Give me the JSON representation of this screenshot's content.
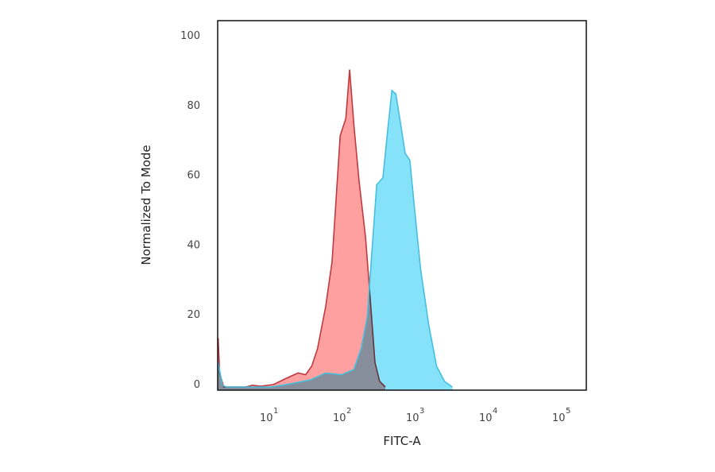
{
  "chart_data": {
    "type": "area",
    "title": "",
    "xlabel": "FITC-A",
    "ylabel": "Normalized To Mode",
    "x_scale": "log",
    "xlim": [
      2.1,
      230000
    ],
    "ylim": [
      0,
      100
    ],
    "grid": false,
    "legend": "none",
    "y_ticks": [
      "0",
      "20",
      "40",
      "60",
      "80",
      "100"
    ],
    "x_ticks": [
      {
        "base": "10",
        "exp": "1",
        "value": 10
      },
      {
        "base": "10",
        "exp": "2",
        "value": 100
      },
      {
        "base": "10",
        "exp": "3",
        "value": 1000
      },
      {
        "base": "10",
        "exp": "4",
        "value": 10000
      },
      {
        "base": "10",
        "exp": "5",
        "value": 100000
      }
    ],
    "series": [
      {
        "fill": "#ff9b9b",
        "stroke": "#c0393f",
        "points": [
          [
            2.1,
            14
          ],
          [
            2.2,
            4
          ],
          [
            2.5,
            0
          ],
          [
            5,
            0
          ],
          [
            6.2,
            0.5
          ],
          [
            8,
            0.2
          ],
          [
            12,
            0.7
          ],
          [
            18,
            2.5
          ],
          [
            26,
            4
          ],
          [
            33,
            3.5
          ],
          [
            40,
            6
          ],
          [
            48,
            11
          ],
          [
            62,
            23
          ],
          [
            76,
            36
          ],
          [
            98,
            72
          ],
          [
            117,
            77
          ],
          [
            132,
            91
          ],
          [
            151,
            75
          ],
          [
            178,
            59
          ],
          [
            218,
            43
          ],
          [
            253,
            25
          ],
          [
            293,
            7
          ],
          [
            340,
            1.6
          ],
          [
            406,
            0
          ]
        ]
      },
      {
        "fill": "#7fe0f8",
        "stroke": "#45bfdd",
        "points": [
          [
            2.1,
            7
          ],
          [
            2.4,
            0.5
          ],
          [
            2.7,
            0
          ],
          [
            11,
            0
          ],
          [
            18,
            0.7
          ],
          [
            38,
            2
          ],
          [
            62,
            4
          ],
          [
            102,
            3.5
          ],
          [
            150,
            5
          ],
          [
            190,
            11
          ],
          [
            230,
            20
          ],
          [
            265,
            38
          ],
          [
            310,
            58
          ],
          [
            377,
            60
          ],
          [
            440,
            74
          ],
          [
            500,
            85
          ],
          [
            565,
            84
          ],
          [
            640,
            77
          ],
          [
            760,
            67
          ],
          [
            880,
            65
          ],
          [
            1010,
            52
          ],
          [
            1230,
            34
          ],
          [
            1590,
            18
          ],
          [
            2040,
            6
          ],
          [
            2630,
            1.6
          ],
          [
            3360,
            0
          ]
        ]
      }
    ]
  }
}
